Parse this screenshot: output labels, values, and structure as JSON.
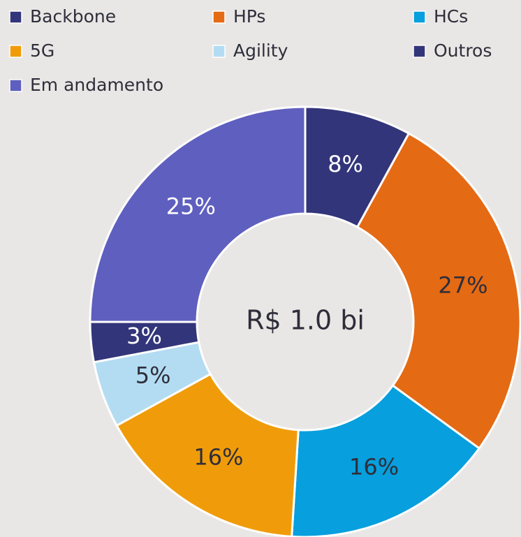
{
  "chart_data": {
    "type": "pie",
    "categories": [
      "Backbone",
      "HPs",
      "HCs",
      "5G",
      "Agility",
      "Outros",
      "Em andamento"
    ],
    "values": [
      8,
      27,
      16,
      16,
      5,
      3,
      25
    ],
    "value_labels": [
      "8%",
      "27%",
      "16%",
      "16%",
      "5%",
      "3%",
      "25%"
    ],
    "colors": [
      "#33357a",
      "#e56a14",
      "#079fdd",
      "#f09c0a",
      "#b3dcf2",
      "#33357a",
      "#5f5fbf"
    ],
    "center_label": "R$ 1.0 bi"
  }
}
